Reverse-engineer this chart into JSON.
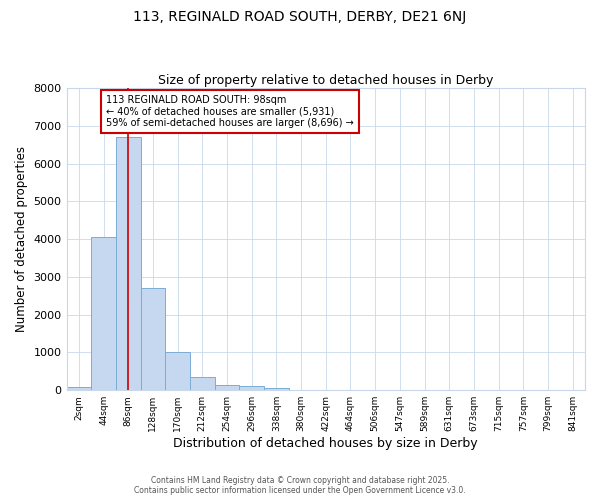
{
  "title1": "113, REGINALD ROAD SOUTH, DERBY, DE21 6NJ",
  "title2": "Size of property relative to detached houses in Derby",
  "xlabel": "Distribution of detached houses by size in Derby",
  "ylabel": "Number of detached properties",
  "bar_labels": [
    "2sqm",
    "44sqm",
    "86sqm",
    "128sqm",
    "170sqm",
    "212sqm",
    "254sqm",
    "296sqm",
    "338sqm",
    "380sqm",
    "422sqm",
    "464sqm",
    "506sqm",
    "547sqm",
    "589sqm",
    "631sqm",
    "673sqm",
    "715sqm",
    "757sqm",
    "799sqm",
    "841sqm"
  ],
  "bar_values": [
    80,
    4050,
    6700,
    2700,
    1000,
    350,
    130,
    100,
    50,
    0,
    0,
    0,
    0,
    0,
    0,
    0,
    0,
    0,
    0,
    0,
    0
  ],
  "bar_color": "#c5d8f0",
  "bar_edge_color": "#7aadd4",
  "vline_x": 2,
  "vline_color": "#cc0000",
  "ylim": [
    0,
    8000
  ],
  "yticks": [
    0,
    1000,
    2000,
    3000,
    4000,
    5000,
    6000,
    7000,
    8000
  ],
  "annotation_title": "113 REGINALD ROAD SOUTH: 98sqm",
  "annotation_line2": "← 40% of detached houses are smaller (5,931)",
  "annotation_line3": "59% of semi-detached houses are larger (8,696) →",
  "annotation_box_color": "#ffffff",
  "annotation_box_edge": "#cc0000",
  "footer_line1": "Contains HM Land Registry data © Crown copyright and database right 2025.",
  "footer_line2": "Contains public sector information licensed under the Open Government Licence v3.0.",
  "bg_color": "#ffffff",
  "plot_bg_color": "#ffffff",
  "grid_color": "#c8d8ea"
}
